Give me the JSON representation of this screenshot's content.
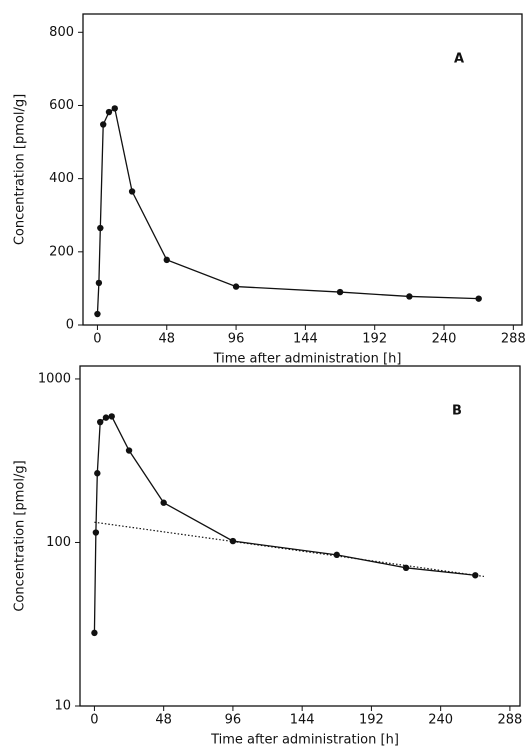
{
  "chart_data": [
    {
      "type": "line",
      "title": "A",
      "xlabel": "Time after administration  [h]",
      "ylabel": "Concentration  [pmol/g]",
      "x": [
        0,
        1,
        2,
        4,
        8,
        12,
        24,
        48,
        96,
        168,
        216,
        264
      ],
      "values": [
        30,
        115,
        265,
        548,
        582,
        592,
        365,
        178,
        105,
        90,
        78,
        72
      ],
      "color": "#111111",
      "log_y": false,
      "xlim": [
        -10,
        294
      ],
      "xticks": [
        0,
        48,
        96,
        144,
        192,
        240,
        288
      ],
      "ylim": [
        0,
        850
      ],
      "yticks": [
        0,
        200,
        400,
        600,
        800
      ]
    },
    {
      "type": "line",
      "title": "B",
      "xlabel": "Time after administration  [h]",
      "ylabel": "Concentration  [pmol/g]",
      "x": [
        0,
        1,
        2,
        4,
        8,
        12,
        24,
        48,
        96,
        168,
        216,
        264
      ],
      "values": [
        28,
        115,
        265,
        545,
        580,
        590,
        365,
        175,
        102,
        84,
        70,
        63
      ],
      "fit": {
        "x": [
          0,
          270
        ],
        "values": [
          133,
          62
        ]
      },
      "color": "#111111",
      "log_y": true,
      "xlim": [
        -10,
        295
      ],
      "xticks": [
        0,
        48,
        96,
        144,
        192,
        240,
        288
      ],
      "ylim": [
        10,
        1200
      ],
      "yticks": [
        10,
        100,
        1000
      ]
    }
  ]
}
